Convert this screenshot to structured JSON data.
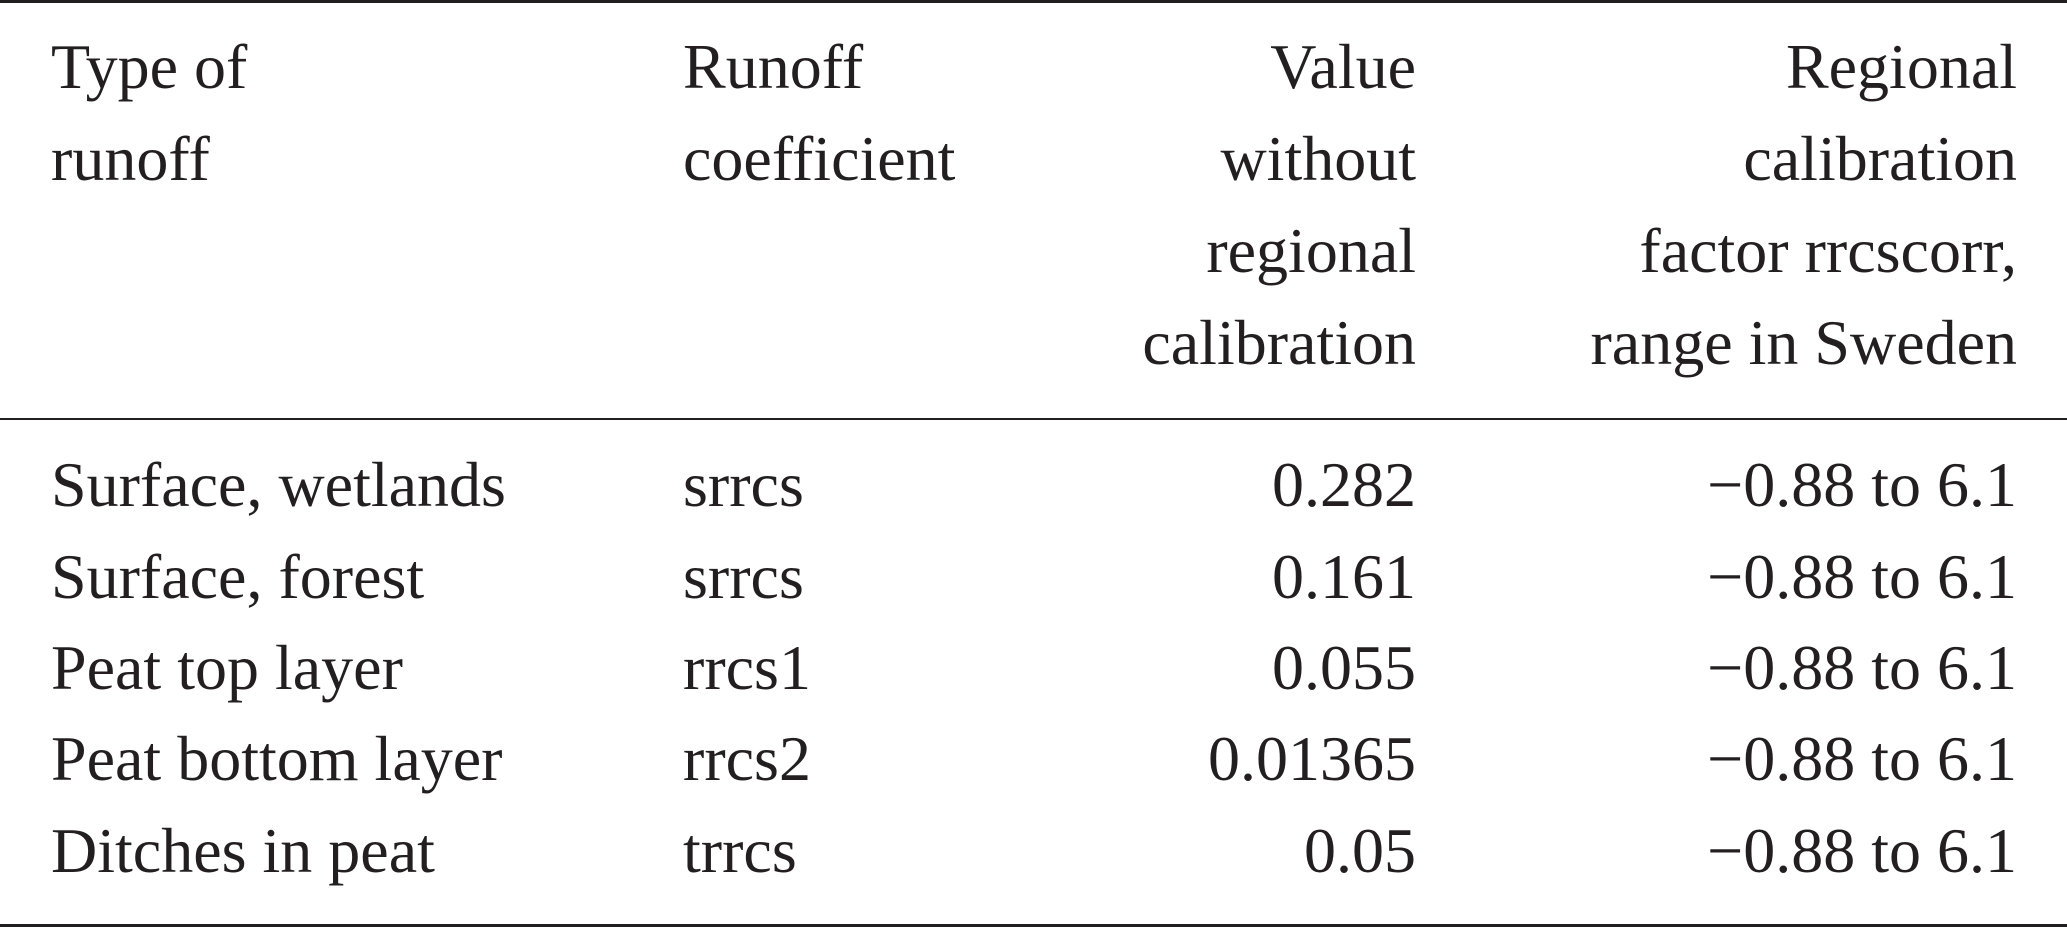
{
  "table": {
    "headers": [
      [
        "Type of",
        "runoff"
      ],
      [
        "Runoff",
        "coefficient"
      ],
      [
        "Value",
        "without",
        "regional",
        "calibration"
      ],
      [
        "Regional",
        "calibration",
        "factor rrcscorr,",
        "range in Sweden"
      ]
    ],
    "rows": [
      [
        "Surface, wetlands",
        "srrcs",
        "0.282",
        "−0.88 to 6.1"
      ],
      [
        "Surface, forest",
        "srrcs",
        "0.161",
        "−0.88 to 6.1"
      ],
      [
        "Peat top layer",
        "rrcs1",
        "0.055",
        "−0.88 to 6.1"
      ],
      [
        "Peat bottom layer",
        "rrcs2",
        "0.01365",
        "−0.88 to 6.1"
      ],
      [
        "Ditches in peat",
        "trrcs",
        "0.05",
        "−0.88 to 6.1"
      ]
    ]
  }
}
